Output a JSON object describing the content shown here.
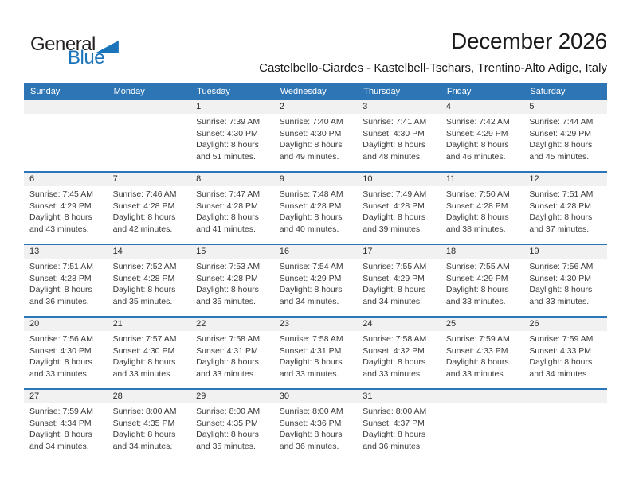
{
  "logo": {
    "part1": "General",
    "part2": "Blue"
  },
  "header": {
    "title": "December 2026",
    "subtitle": "Castelbello-Ciardes - Kastelbell-Tschars, Trentino-Alto Adige, Italy"
  },
  "weekday_labels": [
    "Sunday",
    "Monday",
    "Tuesday",
    "Wednesday",
    "Thursday",
    "Friday",
    "Saturday"
  ],
  "colors": {
    "header_bg": "#2e75b6",
    "week_separator": "#2b76b9",
    "day_band_bg": "#f1f1f1",
    "logo_blue": "#1b75bb",
    "body_text": "#3b3b3b"
  },
  "weeks": [
    [
      {},
      {},
      {
        "day": "1",
        "sunrise": "Sunrise: 7:39 AM",
        "sunset": "Sunset: 4:30 PM",
        "daylight": "Daylight: 8 hours and 51 minutes."
      },
      {
        "day": "2",
        "sunrise": "Sunrise: 7:40 AM",
        "sunset": "Sunset: 4:30 PM",
        "daylight": "Daylight: 8 hours and 49 minutes."
      },
      {
        "day": "3",
        "sunrise": "Sunrise: 7:41 AM",
        "sunset": "Sunset: 4:30 PM",
        "daylight": "Daylight: 8 hours and 48 minutes."
      },
      {
        "day": "4",
        "sunrise": "Sunrise: 7:42 AM",
        "sunset": "Sunset: 4:29 PM",
        "daylight": "Daylight: 8 hours and 46 minutes."
      },
      {
        "day": "5",
        "sunrise": "Sunrise: 7:44 AM",
        "sunset": "Sunset: 4:29 PM",
        "daylight": "Daylight: 8 hours and 45 minutes."
      }
    ],
    [
      {
        "day": "6",
        "sunrise": "Sunrise: 7:45 AM",
        "sunset": "Sunset: 4:29 PM",
        "daylight": "Daylight: 8 hours and 43 minutes."
      },
      {
        "day": "7",
        "sunrise": "Sunrise: 7:46 AM",
        "sunset": "Sunset: 4:28 PM",
        "daylight": "Daylight: 8 hours and 42 minutes."
      },
      {
        "day": "8",
        "sunrise": "Sunrise: 7:47 AM",
        "sunset": "Sunset: 4:28 PM",
        "daylight": "Daylight: 8 hours and 41 minutes."
      },
      {
        "day": "9",
        "sunrise": "Sunrise: 7:48 AM",
        "sunset": "Sunset: 4:28 PM",
        "daylight": "Daylight: 8 hours and 40 minutes."
      },
      {
        "day": "10",
        "sunrise": "Sunrise: 7:49 AM",
        "sunset": "Sunset: 4:28 PM",
        "daylight": "Daylight: 8 hours and 39 minutes."
      },
      {
        "day": "11",
        "sunrise": "Sunrise: 7:50 AM",
        "sunset": "Sunset: 4:28 PM",
        "daylight": "Daylight: 8 hours and 38 minutes."
      },
      {
        "day": "12",
        "sunrise": "Sunrise: 7:51 AM",
        "sunset": "Sunset: 4:28 PM",
        "daylight": "Daylight: 8 hours and 37 minutes."
      }
    ],
    [
      {
        "day": "13",
        "sunrise": "Sunrise: 7:51 AM",
        "sunset": "Sunset: 4:28 PM",
        "daylight": "Daylight: 8 hours and 36 minutes."
      },
      {
        "day": "14",
        "sunrise": "Sunrise: 7:52 AM",
        "sunset": "Sunset: 4:28 PM",
        "daylight": "Daylight: 8 hours and 35 minutes."
      },
      {
        "day": "15",
        "sunrise": "Sunrise: 7:53 AM",
        "sunset": "Sunset: 4:28 PM",
        "daylight": "Daylight: 8 hours and 35 minutes."
      },
      {
        "day": "16",
        "sunrise": "Sunrise: 7:54 AM",
        "sunset": "Sunset: 4:29 PM",
        "daylight": "Daylight: 8 hours and 34 minutes."
      },
      {
        "day": "17",
        "sunrise": "Sunrise: 7:55 AM",
        "sunset": "Sunset: 4:29 PM",
        "daylight": "Daylight: 8 hours and 34 minutes."
      },
      {
        "day": "18",
        "sunrise": "Sunrise: 7:55 AM",
        "sunset": "Sunset: 4:29 PM",
        "daylight": "Daylight: 8 hours and 33 minutes."
      },
      {
        "day": "19",
        "sunrise": "Sunrise: 7:56 AM",
        "sunset": "Sunset: 4:30 PM",
        "daylight": "Daylight: 8 hours and 33 minutes."
      }
    ],
    [
      {
        "day": "20",
        "sunrise": "Sunrise: 7:56 AM",
        "sunset": "Sunset: 4:30 PM",
        "daylight": "Daylight: 8 hours and 33 minutes."
      },
      {
        "day": "21",
        "sunrise": "Sunrise: 7:57 AM",
        "sunset": "Sunset: 4:30 PM",
        "daylight": "Daylight: 8 hours and 33 minutes."
      },
      {
        "day": "22",
        "sunrise": "Sunrise: 7:58 AM",
        "sunset": "Sunset: 4:31 PM",
        "daylight": "Daylight: 8 hours and 33 minutes."
      },
      {
        "day": "23",
        "sunrise": "Sunrise: 7:58 AM",
        "sunset": "Sunset: 4:31 PM",
        "daylight": "Daylight: 8 hours and 33 minutes."
      },
      {
        "day": "24",
        "sunrise": "Sunrise: 7:58 AM",
        "sunset": "Sunset: 4:32 PM",
        "daylight": "Daylight: 8 hours and 33 minutes."
      },
      {
        "day": "25",
        "sunrise": "Sunrise: 7:59 AM",
        "sunset": "Sunset: 4:33 PM",
        "daylight": "Daylight: 8 hours and 33 minutes."
      },
      {
        "day": "26",
        "sunrise": "Sunrise: 7:59 AM",
        "sunset": "Sunset: 4:33 PM",
        "daylight": "Daylight: 8 hours and 34 minutes."
      }
    ],
    [
      {
        "day": "27",
        "sunrise": "Sunrise: 7:59 AM",
        "sunset": "Sunset: 4:34 PM",
        "daylight": "Daylight: 8 hours and 34 minutes."
      },
      {
        "day": "28",
        "sunrise": "Sunrise: 8:00 AM",
        "sunset": "Sunset: 4:35 PM",
        "daylight": "Daylight: 8 hours and 34 minutes."
      },
      {
        "day": "29",
        "sunrise": "Sunrise: 8:00 AM",
        "sunset": "Sunset: 4:35 PM",
        "daylight": "Daylight: 8 hours and 35 minutes."
      },
      {
        "day": "30",
        "sunrise": "Sunrise: 8:00 AM",
        "sunset": "Sunset: 4:36 PM",
        "daylight": "Daylight: 8 hours and 36 minutes."
      },
      {
        "day": "31",
        "sunrise": "Sunrise: 8:00 AM",
        "sunset": "Sunset: 4:37 PM",
        "daylight": "Daylight: 8 hours and 36 minutes."
      },
      {},
      {}
    ]
  ]
}
